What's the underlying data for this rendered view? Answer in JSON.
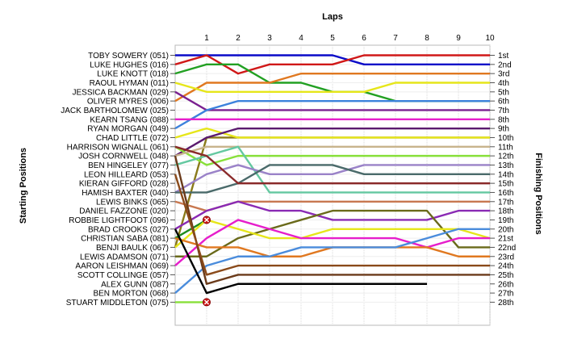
{
  "chart_data": {
    "type": "line",
    "title": "",
    "xlabel": "Laps",
    "ylabel_left": "Starting Positions",
    "ylabel_right": "Finishing Positions",
    "laps": [
      1,
      2,
      3,
      4,
      5,
      6,
      7,
      8,
      9,
      10
    ],
    "finishing_labels": [
      "1st",
      "2nd",
      "3rd",
      "4th",
      "5th",
      "6th",
      "7th",
      "8th",
      "9th",
      "10th",
      "11th",
      "12th",
      "13th",
      "14th",
      "15th",
      "16th",
      "17th",
      "18th",
      "19th",
      "20th",
      "21st",
      "22nd",
      "23rd",
      "24th",
      "25th",
      "26th",
      "27th",
      "28th"
    ],
    "grid": true,
    "drivers": [
      {
        "name": "TOBY SOWERY (051)",
        "color": "#0a0ac8",
        "positions": [
          1,
          1,
          1,
          1,
          1,
          1,
          2,
          2,
          2,
          2,
          2
        ]
      },
      {
        "name": "LUKE HUGHES (016)",
        "color": "#d01818",
        "positions": [
          2,
          1,
          3,
          2,
          2,
          2,
          1,
          1,
          1,
          1,
          1
        ]
      },
      {
        "name": "LUKE KNOTT (018)",
        "color": "#22a022",
        "positions": [
          3,
          2,
          2,
          4,
          4,
          5,
          5,
          6,
          6,
          6,
          6
        ]
      },
      {
        "name": "RAOUL HYMAN (011)",
        "color": "#e07820",
        "positions": [
          6,
          4,
          4,
          4,
          3,
          3,
          3,
          3,
          3,
          3,
          3
        ]
      },
      {
        "name": "JESSICA BACKMAN (029)",
        "color": "#e6e61a",
        "positions": [
          4,
          5,
          5,
          5,
          5,
          5,
          5,
          4,
          4,
          4,
          4
        ]
      },
      {
        "name": "OLIVER MYRES (006)",
        "color": "#7a2090",
        "positions": [
          5,
          7,
          7,
          7,
          7,
          7,
          7,
          7,
          7,
          7,
          7
        ]
      },
      {
        "name": "JACK BARTHOLOMEW (025)",
        "color": "#3c82dc",
        "positions": [
          9,
          7,
          6,
          6,
          6,
          6,
          6,
          6,
          6,
          6,
          6
        ]
      },
      {
        "name": "KEARN TSANG (088)",
        "color": "#e61ecb",
        "positions": [
          8,
          8,
          8,
          8,
          8,
          8,
          8,
          8,
          8,
          8,
          8
        ]
      },
      {
        "name": "RYAN MORGAN (049)",
        "color": "#8a7a1a",
        "positions": [
          22,
          10,
          10,
          10,
          10,
          10,
          10,
          10,
          10,
          10,
          10
        ]
      },
      {
        "name": "CHAD LITTLE (072)",
        "color": "#e6e61a",
        "positions": [
          10,
          9,
          10,
          10,
          10,
          10,
          10,
          10,
          10,
          10,
          10
        ]
      },
      {
        "name": "HARRISON WIGNALL (061)",
        "color": "#5a1a6e",
        "positions": [
          12,
          10,
          9,
          9,
          9,
          9,
          9,
          9,
          9,
          9,
          9
        ]
      },
      {
        "name": "JOSH CORNWELL (048)",
        "color": "#88e03a",
        "positions": [
          11,
          13,
          12,
          12,
          12,
          12,
          12,
          12,
          12,
          12,
          12
        ]
      },
      {
        "name": "BEN HINGELEY (077)",
        "color": "#c8b48c",
        "positions": [
          12,
          11,
          11,
          11,
          11,
          11,
          11,
          11,
          11,
          11,
          11
        ]
      },
      {
        "name": "LEON HILLEARD (053)",
        "color": "#64c8a0",
        "positions": [
          13,
          12,
          11,
          16,
          16,
          16,
          16,
          16,
          16,
          16,
          16
        ]
      },
      {
        "name": "KIERAN GIFFORD (028)",
        "color": "#9a82c8",
        "positions": [
          16,
          14,
          13,
          14,
          14,
          14,
          13,
          13,
          13,
          13,
          13
        ]
      },
      {
        "name": "HAMISH BAXTER (040)",
        "color": "#4a6a6a",
        "positions": [
          16,
          16,
          15,
          13,
          13,
          13,
          14,
          14,
          14,
          14,
          14
        ]
      },
      {
        "name": "LEWIS BINKS (065)",
        "color": "#8a2a2a",
        "positions": [
          11,
          12,
          15,
          15,
          15,
          15,
          15,
          15,
          15,
          15,
          15
        ]
      },
      {
        "name": "DANIEL FAZZONE (020)",
        "color": "#c87850",
        "positions": [
          17,
          18,
          17,
          17,
          17,
          17,
          17,
          17,
          17,
          17,
          17
        ]
      },
      {
        "name": "ROBBIE LIGHTFOOT (096)",
        "color": "#8a2ab4",
        "positions": [
          20,
          18,
          17,
          18,
          18,
          19,
          19,
          19,
          19,
          18,
          18
        ]
      },
      {
        "name": "BRAD CROOKS (027)",
        "color": "#1e8c1e",
        "positions": [
          21,
          19
        ]
      },
      {
        "name": "CHRISTIAN SABA (081)",
        "color": "#6a6a1a",
        "positions": [
          23,
          23,
          21,
          20,
          19,
          18,
          18,
          18,
          18,
          22,
          22
        ]
      },
      {
        "name": "BENJI BAULK (067)",
        "color": "#e6e61a",
        "positions": [
          22,
          19,
          20,
          21,
          21,
          20,
          20,
          20,
          20,
          20,
          21
        ]
      },
      {
        "name": "LEWIS ADAMSON (071)",
        "color": "#e61ecb",
        "positions": [
          24,
          21,
          19,
          20,
          21,
          21,
          21,
          21,
          22,
          21,
          21
        ]
      },
      {
        "name": "AARON LEISHMAN (069)",
        "color": "#e07820",
        "positions": [
          21,
          22,
          22,
          23,
          23,
          22,
          22,
          22,
          22,
          23,
          23
        ]
      },
      {
        "name": "SCOTT COLLINGE (057)",
        "color": "#4a8cdc",
        "positions": [
          27,
          24,
          23,
          23,
          22,
          22,
          22,
          22,
          21,
          20,
          20
        ]
      },
      {
        "name": "ALEX GUNN (087)",
        "color": "#6a3a1a",
        "positions": [
          12,
          26,
          25,
          25,
          25,
          25,
          25,
          25,
          25,
          25,
          25
        ]
      },
      {
        "name": "BEN MORTON (068)",
        "color": "#8a4a1a",
        "positions": [
          14,
          25,
          24,
          24,
          24,
          24,
          24,
          24,
          24,
          24,
          24
        ]
      },
      {
        "name": "STUART MIDDLETON (075)",
        "color": "#000000",
        "positions": [
          20,
          27,
          26,
          26,
          26,
          26,
          26,
          26,
          26
        ]
      }
    ],
    "retirements": [
      {
        "name": "ROBBIE LIGHTFOOT (096)",
        "lap": 1,
        "position": 19
      },
      {
        "name": "STUART MIDDLETON (075)",
        "lap": 1,
        "position": 28
      }
    ],
    "stuart_start": {
      "name": "STUART MIDDLETON (075)",
      "color": "#88e03a",
      "positions": [
        28,
        28
      ]
    }
  }
}
